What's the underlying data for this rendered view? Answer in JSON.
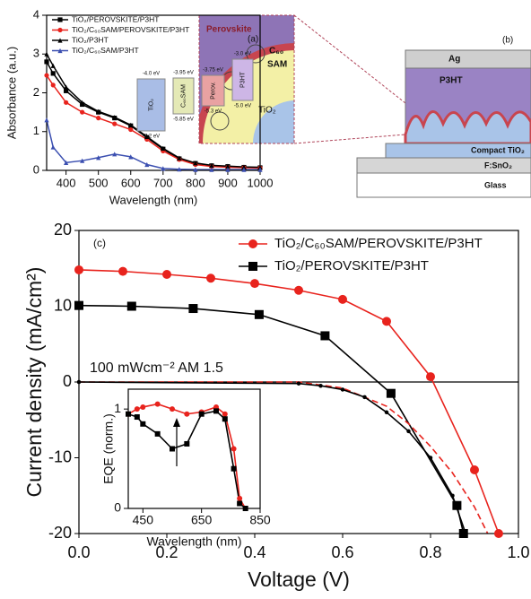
{
  "chart_data": [
    {
      "type": "line",
      "label": "(a)",
      "xlabel": "Wavelength (nm)",
      "ylabel": "Absorbance (a.u.)",
      "xlim": [
        340,
        1000
      ],
      "ylim": [
        0,
        4
      ],
      "xticks": [
        400,
        500,
        600,
        700,
        800,
        900,
        1000
      ],
      "yticks": [
        0,
        1,
        2,
        3,
        4
      ],
      "series": [
        {
          "name": "TiO₂/PEROVSKITE/P3HT",
          "color": "#000000",
          "marker": "square",
          "x": [
            340,
            360,
            400,
            450,
            500,
            550,
            600,
            650,
            700,
            750,
            800,
            850,
            900,
            950,
            1000
          ],
          "values": [
            2.8,
            2.5,
            2.05,
            1.7,
            1.5,
            1.35,
            1.15,
            0.85,
            0.55,
            0.3,
            0.18,
            0.12,
            0.1,
            0.08,
            0.07
          ]
        },
        {
          "name": "TiO₂/C₆₀SAM/PEROVSKITE/P3HT",
          "color": "#e8231d",
          "marker": "circle",
          "x": [
            340,
            360,
            400,
            450,
            500,
            550,
            600,
            650,
            700,
            750,
            800,
            850,
            900,
            950,
            1000
          ],
          "values": [
            2.45,
            2.2,
            1.75,
            1.5,
            1.35,
            1.2,
            1.05,
            0.8,
            0.5,
            0.28,
            0.15,
            0.1,
            0.08,
            0.07,
            0.06
          ]
        },
        {
          "name": "TiO₂/P3HT",
          "color": "#000000",
          "marker": "triangle",
          "x": [
            340,
            360,
            400,
            450,
            500,
            550,
            600,
            650,
            700,
            750,
            800,
            850,
            900,
            950,
            1000
          ],
          "values": [
            3.0,
            2.7,
            2.15,
            1.75,
            1.52,
            1.37,
            1.17,
            0.87,
            0.57,
            0.32,
            0.19,
            0.13,
            0.11,
            0.09,
            0.08
          ]
        },
        {
          "name": "TiO₂/C₆₀SAM/P3HT",
          "color": "#3b4fb0",
          "marker": "triangle",
          "x": [
            340,
            360,
            400,
            450,
            500,
            550,
            600,
            650,
            700,
            750,
            800,
            850,
            900,
            950,
            1000
          ],
          "values": [
            1.3,
            0.6,
            0.2,
            0.25,
            0.33,
            0.42,
            0.35,
            0.15,
            0.05,
            0.03,
            0.02,
            0.02,
            0.02,
            0.02,
            0.02
          ]
        }
      ],
      "energy_levels": [
        {
          "label": "TiO₂",
          "lumo": "-4.0 eV",
          "homo": "-7.2 eV",
          "color": "#a9bde6"
        },
        {
          "label": "C₆₀SAM",
          "lumo": "-3.95 eV",
          "homo": "-5.85 eV",
          "color": "#e4e9b6"
        },
        {
          "label": "Perov.",
          "lumo": "-3.75 eV",
          "homo": "-5.3 eV",
          "color": "#e9a2a2"
        },
        {
          "label": "P3HT",
          "lumo": "-3.0 eV",
          "homo": "-5.0 eV",
          "color": "#cdb6e6"
        }
      ]
    },
    {
      "type": "line",
      "label": "(c)",
      "annotation": "100 mWcm⁻² AM 1.5",
      "xlabel": "Voltage (V)",
      "ylabel": "Current density (mA/cm²)",
      "xlim": [
        0,
        1.0
      ],
      "ylim": [
        -20,
        20
      ],
      "xticks": [
        {
          "value": 0,
          "label": "0.0"
        },
        0.2,
        0.4,
        0.6,
        0.8,
        {
          "value": 1.0,
          "label": "1.0"
        }
      ],
      "yticks": [
        -20,
        -10,
        0,
        10,
        20
      ],
      "series": [
        {
          "name": "TiO₂/C₆₀SAM/PEROVSKITE/P3HT",
          "color": "#e8231d",
          "marker": "circle",
          "x": [
            0,
            0.1,
            0.2,
            0.3,
            0.4,
            0.5,
            0.6,
            0.7,
            0.8,
            0.9,
            0.955
          ],
          "values": [
            14.8,
            14.6,
            14.2,
            13.7,
            13.0,
            12.1,
            10.9,
            8.0,
            0.7,
            -11.6,
            -20
          ]
        },
        {
          "name": "TiO₂/PEROVSKITE/P3HT",
          "color": "#000000",
          "marker": "square",
          "x": [
            0,
            0.12,
            0.26,
            0.41,
            0.56,
            0.71,
            0.86,
            0.875
          ],
          "values": [
            10.1,
            10.0,
            9.7,
            8.9,
            6.1,
            -1.5,
            -16.3,
            -20
          ]
        },
        {
          "color": "#e8231d",
          "dashed": true,
          "x": [
            0,
            0.5,
            0.6,
            0.7,
            0.75,
            0.8,
            0.85,
            0.9,
            0.93
          ],
          "values": [
            0,
            0,
            -0.8,
            -3.2,
            -5.5,
            -8.5,
            -12,
            -16.5,
            -20
          ]
        },
        {
          "color": "#000000",
          "marker": "dot",
          "x": [
            0,
            0.5,
            0.55,
            0.6,
            0.65,
            0.7,
            0.75,
            0.8,
            0.85,
            0.88
          ],
          "values": [
            0,
            -0.2,
            -0.5,
            -1,
            -2,
            -4,
            -6.5,
            -10,
            -15,
            -20
          ]
        }
      ]
    },
    {
      "type": "line",
      "xlabel": "Wavelength (nm)",
      "ylabel": "EQE (norm.)",
      "xlim": [
        400,
        850
      ],
      "ylim": [
        0,
        1.2
      ],
      "xticks": [
        450,
        650,
        850
      ],
      "yticks": [
        0,
        1
      ],
      "series": [
        {
          "color": "#e8231d",
          "marker": "circle",
          "x": [
            400,
            430,
            450,
            500,
            550,
            600,
            650,
            700,
            730,
            760,
            780,
            800
          ],
          "values": [
            0.95,
            1.0,
            1.02,
            1.05,
            1.0,
            0.95,
            0.97,
            1.02,
            0.95,
            0.6,
            0.1,
            0
          ]
        },
        {
          "color": "#000000",
          "marker": "square",
          "x": [
            400,
            430,
            450,
            500,
            550,
            600,
            650,
            700,
            730,
            760,
            780,
            800
          ],
          "values": [
            0.95,
            0.92,
            0.85,
            0.75,
            0.6,
            0.65,
            0.95,
            0.98,
            0.9,
            0.4,
            0.05,
            0
          ]
        }
      ]
    }
  ],
  "diagram": {
    "label": "(b)",
    "zoom": {
      "perovskite": "Perovskite",
      "c60": "C₆₀",
      "sam": "SAM",
      "tio2": "TiO₂"
    },
    "layers": {
      "ag": "Ag",
      "p3ht": "P3HT",
      "compact": "Compact TiO₂",
      "fto": "F:SnO₂",
      "glass": "Glass"
    }
  }
}
